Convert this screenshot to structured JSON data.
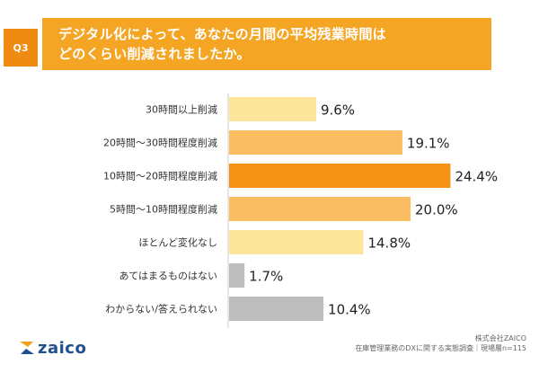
{
  "question": {
    "badge": "Q3",
    "line1": "デジタル化によって、あなたの月間の平均残業時間は",
    "line2": "どのくらい削減されましたか。"
  },
  "chart_data": {
    "type": "bar",
    "orientation": "horizontal",
    "categories": [
      "30時間以上削減",
      "20時間〜30時間程度削減",
      "10時間〜20時間程度削減",
      "5時間〜10時間程度削減",
      "ほとんど変化なし",
      "あてはまるものはない",
      "わからない/答えられない"
    ],
    "values": [
      9.6,
      19.1,
      24.4,
      20.0,
      14.8,
      1.7,
      10.4
    ],
    "value_labels": [
      "9.6%",
      "19.1%",
      "24.4%",
      "20.0%",
      "14.8%",
      "1.7%",
      "10.4%"
    ],
    "colors": [
      "#fde59a",
      "#fbbd62",
      "#f59216",
      "#fbbd62",
      "#fde59a",
      "#bdbdbd",
      "#bdbdbd"
    ],
    "xlim": [
      0,
      30
    ],
    "grid": false,
    "legend": "none"
  },
  "footer": {
    "company": "株式会社ZAICO",
    "survey": "在庫管理業務のDXに関する実態調査｜現場層n=115"
  },
  "logo": {
    "text": "zaico",
    "icon": "zaico-logo-icon",
    "icon_colors": [
      "#f2a01f",
      "#1f4f8f"
    ]
  }
}
